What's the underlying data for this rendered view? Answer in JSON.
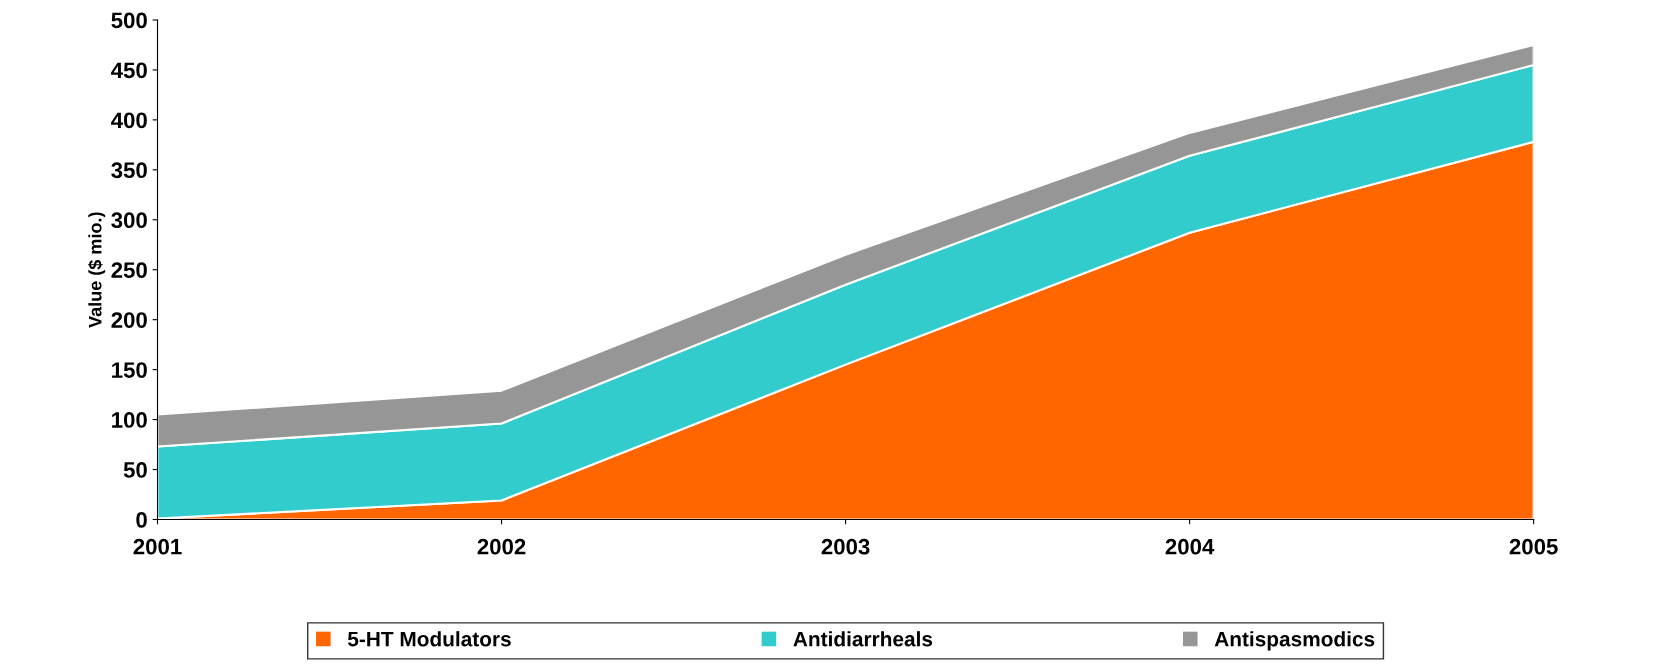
{
  "chart_data": {
    "type": "area",
    "stacked": true,
    "ylabel": "Value ($ mio.)",
    "x": [
      2001,
      2002,
      2003,
      2004,
      2005
    ],
    "xlim": [
      2001,
      2005
    ],
    "xticks": [
      2001,
      2002,
      2003,
      2004,
      2005
    ],
    "ylim": [
      0,
      500
    ],
    "yticks": [
      0,
      50,
      100,
      150,
      200,
      250,
      300,
      350,
      400,
      450,
      500
    ],
    "series": [
      {
        "name": "5-HT Modulators",
        "color": "#ff6600",
        "values": [
          1,
          19,
          155,
          287,
          378
        ]
      },
      {
        "name": "Antidiarrheals",
        "color": "#33cccc",
        "values": [
          72,
          77,
          80,
          77,
          77
        ]
      },
      {
        "name": "Antispasmodics",
        "color": "#969696",
        "values": [
          32,
          33,
          30,
          23,
          20
        ]
      }
    ],
    "grid": false,
    "legend": "bottom"
  }
}
